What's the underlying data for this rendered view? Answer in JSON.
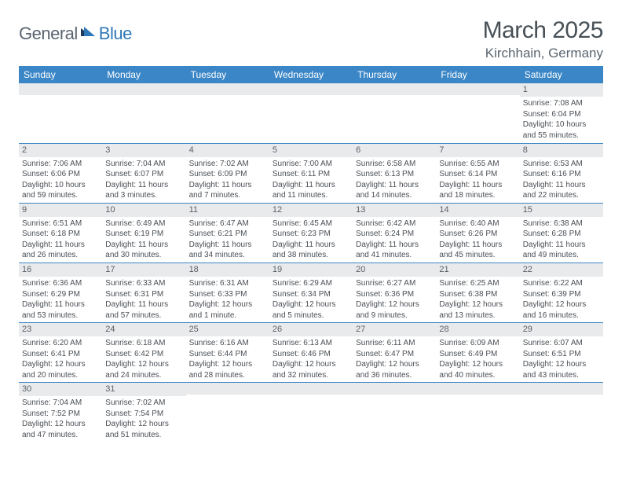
{
  "logo": {
    "part1": "General",
    "part2": "Blue"
  },
  "title": "March 2025",
  "location": "Kirchhain, Germany",
  "colors": {
    "header_bg": "#3b86c6",
    "header_text": "#ffffff",
    "daynum_bg": "#e9eaec",
    "row_border": "#3b86c6",
    "logo_gray": "#5a6570",
    "logo_blue": "#2f78b7",
    "title_color": "#475056",
    "body_text": "#4a4f55"
  },
  "day_headers": [
    "Sunday",
    "Monday",
    "Tuesday",
    "Wednesday",
    "Thursday",
    "Friday",
    "Saturday"
  ],
  "weeks": [
    [
      {
        "n": "",
        "sr": "",
        "ss": "",
        "dl": ""
      },
      {
        "n": "",
        "sr": "",
        "ss": "",
        "dl": ""
      },
      {
        "n": "",
        "sr": "",
        "ss": "",
        "dl": ""
      },
      {
        "n": "",
        "sr": "",
        "ss": "",
        "dl": ""
      },
      {
        "n": "",
        "sr": "",
        "ss": "",
        "dl": ""
      },
      {
        "n": "",
        "sr": "",
        "ss": "",
        "dl": ""
      },
      {
        "n": "1",
        "sr": "Sunrise: 7:08 AM",
        "ss": "Sunset: 6:04 PM",
        "dl": "Daylight: 10 hours and 55 minutes."
      }
    ],
    [
      {
        "n": "2",
        "sr": "Sunrise: 7:06 AM",
        "ss": "Sunset: 6:06 PM",
        "dl": "Daylight: 10 hours and 59 minutes."
      },
      {
        "n": "3",
        "sr": "Sunrise: 7:04 AM",
        "ss": "Sunset: 6:07 PM",
        "dl": "Daylight: 11 hours and 3 minutes."
      },
      {
        "n": "4",
        "sr": "Sunrise: 7:02 AM",
        "ss": "Sunset: 6:09 PM",
        "dl": "Daylight: 11 hours and 7 minutes."
      },
      {
        "n": "5",
        "sr": "Sunrise: 7:00 AM",
        "ss": "Sunset: 6:11 PM",
        "dl": "Daylight: 11 hours and 11 minutes."
      },
      {
        "n": "6",
        "sr": "Sunrise: 6:58 AM",
        "ss": "Sunset: 6:13 PM",
        "dl": "Daylight: 11 hours and 14 minutes."
      },
      {
        "n": "7",
        "sr": "Sunrise: 6:55 AM",
        "ss": "Sunset: 6:14 PM",
        "dl": "Daylight: 11 hours and 18 minutes."
      },
      {
        "n": "8",
        "sr": "Sunrise: 6:53 AM",
        "ss": "Sunset: 6:16 PM",
        "dl": "Daylight: 11 hours and 22 minutes."
      }
    ],
    [
      {
        "n": "9",
        "sr": "Sunrise: 6:51 AM",
        "ss": "Sunset: 6:18 PM",
        "dl": "Daylight: 11 hours and 26 minutes."
      },
      {
        "n": "10",
        "sr": "Sunrise: 6:49 AM",
        "ss": "Sunset: 6:19 PM",
        "dl": "Daylight: 11 hours and 30 minutes."
      },
      {
        "n": "11",
        "sr": "Sunrise: 6:47 AM",
        "ss": "Sunset: 6:21 PM",
        "dl": "Daylight: 11 hours and 34 minutes."
      },
      {
        "n": "12",
        "sr": "Sunrise: 6:45 AM",
        "ss": "Sunset: 6:23 PM",
        "dl": "Daylight: 11 hours and 38 minutes."
      },
      {
        "n": "13",
        "sr": "Sunrise: 6:42 AM",
        "ss": "Sunset: 6:24 PM",
        "dl": "Daylight: 11 hours and 41 minutes."
      },
      {
        "n": "14",
        "sr": "Sunrise: 6:40 AM",
        "ss": "Sunset: 6:26 PM",
        "dl": "Daylight: 11 hours and 45 minutes."
      },
      {
        "n": "15",
        "sr": "Sunrise: 6:38 AM",
        "ss": "Sunset: 6:28 PM",
        "dl": "Daylight: 11 hours and 49 minutes."
      }
    ],
    [
      {
        "n": "16",
        "sr": "Sunrise: 6:36 AM",
        "ss": "Sunset: 6:29 PM",
        "dl": "Daylight: 11 hours and 53 minutes."
      },
      {
        "n": "17",
        "sr": "Sunrise: 6:33 AM",
        "ss": "Sunset: 6:31 PM",
        "dl": "Daylight: 11 hours and 57 minutes."
      },
      {
        "n": "18",
        "sr": "Sunrise: 6:31 AM",
        "ss": "Sunset: 6:33 PM",
        "dl": "Daylight: 12 hours and 1 minute."
      },
      {
        "n": "19",
        "sr": "Sunrise: 6:29 AM",
        "ss": "Sunset: 6:34 PM",
        "dl": "Daylight: 12 hours and 5 minutes."
      },
      {
        "n": "20",
        "sr": "Sunrise: 6:27 AM",
        "ss": "Sunset: 6:36 PM",
        "dl": "Daylight: 12 hours and 9 minutes."
      },
      {
        "n": "21",
        "sr": "Sunrise: 6:25 AM",
        "ss": "Sunset: 6:38 PM",
        "dl": "Daylight: 12 hours and 13 minutes."
      },
      {
        "n": "22",
        "sr": "Sunrise: 6:22 AM",
        "ss": "Sunset: 6:39 PM",
        "dl": "Daylight: 12 hours and 16 minutes."
      }
    ],
    [
      {
        "n": "23",
        "sr": "Sunrise: 6:20 AM",
        "ss": "Sunset: 6:41 PM",
        "dl": "Daylight: 12 hours and 20 minutes."
      },
      {
        "n": "24",
        "sr": "Sunrise: 6:18 AM",
        "ss": "Sunset: 6:42 PM",
        "dl": "Daylight: 12 hours and 24 minutes."
      },
      {
        "n": "25",
        "sr": "Sunrise: 6:16 AM",
        "ss": "Sunset: 6:44 PM",
        "dl": "Daylight: 12 hours and 28 minutes."
      },
      {
        "n": "26",
        "sr": "Sunrise: 6:13 AM",
        "ss": "Sunset: 6:46 PM",
        "dl": "Daylight: 12 hours and 32 minutes."
      },
      {
        "n": "27",
        "sr": "Sunrise: 6:11 AM",
        "ss": "Sunset: 6:47 PM",
        "dl": "Daylight: 12 hours and 36 minutes."
      },
      {
        "n": "28",
        "sr": "Sunrise: 6:09 AM",
        "ss": "Sunset: 6:49 PM",
        "dl": "Daylight: 12 hours and 40 minutes."
      },
      {
        "n": "29",
        "sr": "Sunrise: 6:07 AM",
        "ss": "Sunset: 6:51 PM",
        "dl": "Daylight: 12 hours and 43 minutes."
      }
    ],
    [
      {
        "n": "30",
        "sr": "Sunrise: 7:04 AM",
        "ss": "Sunset: 7:52 PM",
        "dl": "Daylight: 12 hours and 47 minutes."
      },
      {
        "n": "31",
        "sr": "Sunrise: 7:02 AM",
        "ss": "Sunset: 7:54 PM",
        "dl": "Daylight: 12 hours and 51 minutes."
      },
      {
        "n": "",
        "sr": "",
        "ss": "",
        "dl": ""
      },
      {
        "n": "",
        "sr": "",
        "ss": "",
        "dl": ""
      },
      {
        "n": "",
        "sr": "",
        "ss": "",
        "dl": ""
      },
      {
        "n": "",
        "sr": "",
        "ss": "",
        "dl": ""
      },
      {
        "n": "",
        "sr": "",
        "ss": "",
        "dl": ""
      }
    ]
  ]
}
